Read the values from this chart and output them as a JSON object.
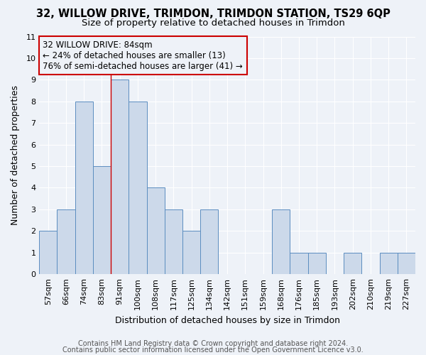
{
  "title": "32, WILLOW DRIVE, TRIMDON, TRIMDON STATION, TS29 6QP",
  "subtitle": "Size of property relative to detached houses in Trimdon",
  "xlabel": "Distribution of detached houses by size in Trimdon",
  "ylabel": "Number of detached properties",
  "bar_color": "#ccd9ea",
  "bar_edge_color": "#5b8dc0",
  "categories": [
    "57sqm",
    "66sqm",
    "74sqm",
    "83sqm",
    "91sqm",
    "100sqm",
    "108sqm",
    "117sqm",
    "125sqm",
    "134sqm",
    "142sqm",
    "151sqm",
    "159sqm",
    "168sqm",
    "176sqm",
    "185sqm",
    "193sqm",
    "202sqm",
    "210sqm",
    "219sqm",
    "227sqm"
  ],
  "values": [
    2,
    3,
    8,
    5,
    9,
    8,
    4,
    3,
    2,
    3,
    0,
    0,
    0,
    3,
    1,
    1,
    0,
    1,
    0,
    1,
    1
  ],
  "ylim": [
    0,
    11
  ],
  "yticks": [
    0,
    1,
    2,
    3,
    4,
    5,
    6,
    7,
    8,
    9,
    10,
    11
  ],
  "vline_x_index": 3,
  "vline_color": "#cc0000",
  "annotation_line1": "32 WILLOW DRIVE: 84sqm",
  "annotation_line2": "← 24% of detached houses are smaller (13)",
  "annotation_line3": "76% of semi-detached houses are larger (41) →",
  "annotation_box_color": "#cc0000",
  "footer_line1": "Contains HM Land Registry data © Crown copyright and database right 2024.",
  "footer_line2": "Contains public sector information licensed under the Open Government Licence v3.0.",
  "bg_color": "#eef2f8",
  "plot_bg_color": "#eef2f8",
  "grid_color": "#ffffff",
  "title_fontsize": 10.5,
  "subtitle_fontsize": 9.5,
  "axis_label_fontsize": 9,
  "tick_fontsize": 8,
  "annotation_fontsize": 8.5,
  "footer_fontsize": 7
}
